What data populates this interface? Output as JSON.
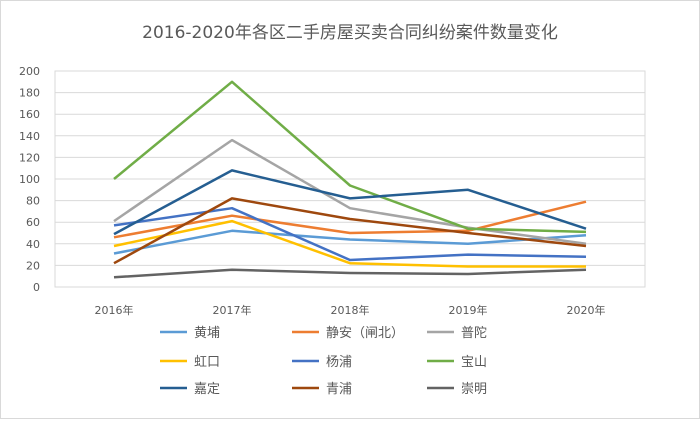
{
  "chart_data": {
    "type": "line",
    "title": "2016-2020年各区二手房屋买卖合同纠纷案件数量变化",
    "xlabel": "",
    "ylabel": "",
    "categories": [
      "2016年",
      "2017年",
      "2018年",
      "2019年",
      "2020年"
    ],
    "ylim": [
      0,
      200
    ],
    "yticks": [
      0,
      20,
      40,
      60,
      80,
      100,
      120,
      140,
      160,
      180,
      200
    ],
    "grid": true,
    "legend_position": "bottom",
    "series": [
      {
        "name": "黄埔",
        "color": "#5b9bd5",
        "values": [
          31,
          52,
          44,
          40,
          48
        ]
      },
      {
        "name": "静安（闸北）",
        "color": "#ed7d31",
        "values": [
          46,
          66,
          50,
          52,
          79
        ]
      },
      {
        "name": "普陀",
        "color": "#a5a5a5",
        "values": [
          61,
          136,
          73,
          55,
          40
        ]
      },
      {
        "name": "虹口",
        "color": "#ffc000",
        "values": [
          38,
          61,
          22,
          19,
          19
        ]
      },
      {
        "name": "杨浦",
        "color": "#4472c4",
        "values": [
          57,
          73,
          25,
          30,
          28
        ]
      },
      {
        "name": "宝山",
        "color": "#70ad47",
        "values": [
          100,
          190,
          94,
          54,
          51
        ]
      },
      {
        "name": "嘉定",
        "color": "#255e91",
        "values": [
          49,
          108,
          82,
          90,
          54
        ]
      },
      {
        "name": "青浦",
        "color": "#9e480e",
        "values": [
          22,
          82,
          63,
          50,
          38
        ]
      },
      {
        "name": "崇明",
        "color": "#636363",
        "values": [
          9,
          16,
          13,
          12,
          16
        ]
      }
    ]
  }
}
